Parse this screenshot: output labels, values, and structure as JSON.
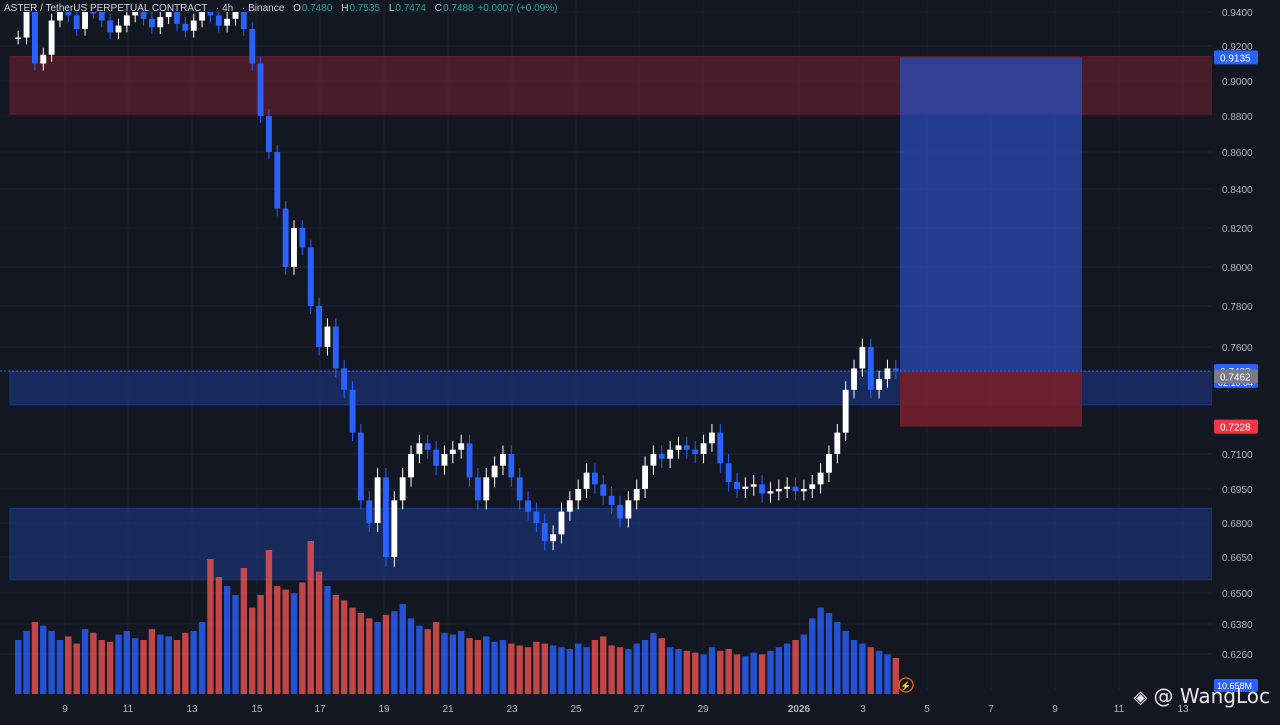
{
  "header": {
    "symbol": "ASTER / TetherUS PERPETUAL CONTRACT",
    "interval": "4h",
    "exchange": "Binance",
    "open_label": "O",
    "open": "0.7480",
    "high_label": "H",
    "high": "0.7535",
    "low_label": "L",
    "low": "0.7474",
    "close_label": "C",
    "close": "0.7488",
    "change": "+0.0007 (+0.09%)"
  },
  "watermark": "@ WangLoc",
  "colors": {
    "background": "#131722",
    "up_candle": "#ffffff",
    "down_candle": "#2962ff",
    "up_volume": "#2962ff",
    "down_volume": "#ef5350",
    "supply_zone": "#5b1f2b",
    "demand_zone": "#1e3a8a",
    "target_box": "#2a4fbf",
    "stop_box": "#7a1f2c"
  },
  "chart_data": {
    "type": "candlestick",
    "y_ticks": [
      "0.9400",
      "0.9200",
      "0.9000",
      "0.8800",
      "0.8600",
      "0.8400",
      "0.8200",
      "0.8000",
      "0.7800",
      "0.7600",
      "0.7100",
      "0.6950",
      "0.6800",
      "0.6650",
      "0.6500",
      "0.6380",
      "0.6260"
    ],
    "x_ticks": [
      "9",
      "11",
      "13",
      "15",
      "17",
      "19",
      "21",
      "23",
      "25",
      "27",
      "29",
      "2026",
      "3",
      "5",
      "7",
      "9",
      "11",
      "13"
    ],
    "ylim": [
      0.626,
      0.945
    ],
    "price_labels": [
      {
        "value": 0.9135,
        "label": "0.9135",
        "color": "#2962ff"
      },
      {
        "value": 0.7488,
        "label": "0.7488",
        "sub": "02:16:04",
        "color": "#2962ff"
      },
      {
        "value": 0.7462,
        "label": "0.7462",
        "color": "#787b86"
      },
      {
        "value": 0.7228,
        "label": "0.7228",
        "color": "#f23645"
      }
    ],
    "volume_label": "10.658M",
    "zones": [
      {
        "name": "supply",
        "from": 0.881,
        "to": 0.914
      },
      {
        "name": "mid-demand",
        "from": 0.733,
        "to": 0.7485
      },
      {
        "name": "demand",
        "from": 0.6555,
        "to": 0.6865
      }
    ],
    "position": {
      "entry": 0.7488,
      "target": 0.9135,
      "stop": 0.7228
    },
    "closes": [
      0.925,
      0.94,
      0.91,
      0.915,
      0.935,
      0.943,
      0.938,
      0.93,
      0.945,
      0.94,
      0.935,
      0.928,
      0.932,
      0.938,
      0.942,
      0.936,
      0.931,
      0.937,
      0.941,
      0.933,
      0.929,
      0.935,
      0.94,
      0.938,
      0.932,
      0.936,
      0.942,
      0.93,
      0.91,
      0.88,
      0.86,
      0.83,
      0.8,
      0.82,
      0.81,
      0.78,
      0.76,
      0.77,
      0.75,
      0.74,
      0.72,
      0.69,
      0.68,
      0.7,
      0.665,
      0.69,
      0.7,
      0.71,
      0.715,
      0.712,
      0.705,
      0.71,
      0.712,
      0.715,
      0.7,
      0.69,
      0.7,
      0.705,
      0.71,
      0.7,
      0.69,
      0.685,
      0.68,
      0.672,
      0.675,
      0.685,
      0.69,
      0.695,
      0.702,
      0.697,
      0.692,
      0.688,
      0.682,
      0.69,
      0.695,
      0.705,
      0.71,
      0.708,
      0.712,
      0.714,
      0.712,
      0.71,
      0.715,
      0.72,
      0.706,
      0.698,
      0.695,
      0.696,
      0.697,
      0.693,
      0.694,
      0.695,
      0.696,
      0.694,
      0.695,
      0.697,
      0.702,
      0.71,
      0.72,
      0.74,
      0.75,
      0.76,
      0.74,
      0.745,
      0.75,
      0.749
    ],
    "volumes": [
      0.3,
      0.35,
      0.4,
      0.38,
      0.35,
      0.3,
      0.32,
      0.28,
      0.36,
      0.34,
      0.3,
      0.29,
      0.33,
      0.35,
      0.31,
      0.3,
      0.36,
      0.33,
      0.32,
      0.3,
      0.34,
      0.35,
      0.4,
      0.75,
      0.65,
      0.6,
      0.55,
      0.7,
      0.48,
      0.55,
      0.8,
      0.6,
      0.58,
      0.56,
      0.62,
      0.85,
      0.68,
      0.6,
      0.55,
      0.52,
      0.48,
      0.45,
      0.42,
      0.4,
      0.44,
      0.46,
      0.5,
      0.42,
      0.38,
      0.36,
      0.4,
      0.34,
      0.33,
      0.35,
      0.31,
      0.3,
      0.32,
      0.29,
      0.3,
      0.28,
      0.27,
      0.26,
      0.29,
      0.28,
      0.27,
      0.26,
      0.25,
      0.28,
      0.26,
      0.3,
      0.32,
      0.27,
      0.26,
      0.25,
      0.28,
      0.3,
      0.34,
      0.31,
      0.26,
      0.25,
      0.24,
      0.23,
      0.22,
      0.26,
      0.24,
      0.25,
      0.22,
      0.21,
      0.23,
      0.22,
      0.24,
      0.26,
      0.28,
      0.3,
      0.33,
      0.42,
      0.48,
      0.45,
      0.4,
      0.35,
      0.3,
      0.28,
      0.26,
      0.24,
      0.22,
      0.2
    ]
  }
}
